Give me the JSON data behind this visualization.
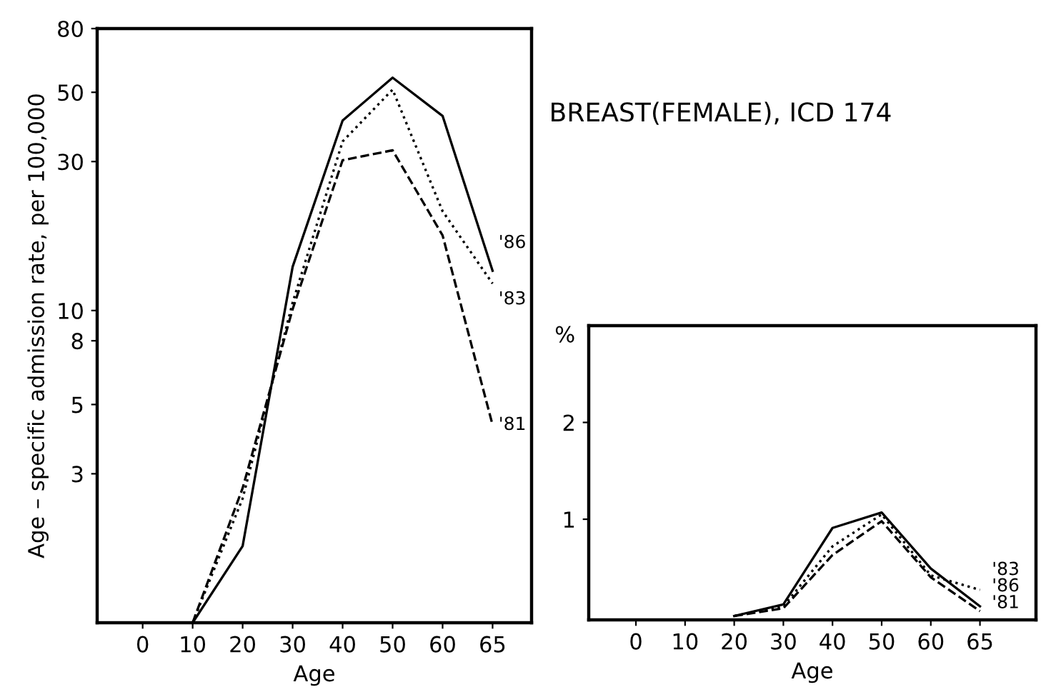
{
  "chart_data": [
    {
      "type": "line",
      "ylabel": "Age – specific admission rate, per 100,000",
      "xlabel": "Age",
      "log": "y",
      "categories": [
        "0",
        "10",
        "20",
        "30",
        "40",
        "50",
        "60",
        "65"
      ],
      "ylim": [
        1,
        80
      ],
      "yticks": [
        3,
        5,
        8,
        10,
        30,
        50,
        80
      ],
      "grid": false,
      "series": [
        {
          "name": "'86",
          "color": "#000000",
          "line_style": "solid",
          "values": [
            null,
            1.0,
            1.76,
            13.8,
            40.6,
            55.7,
            42,
            13.4
          ]
        },
        {
          "name": "'83",
          "color": "#000000",
          "line_style": "dotted",
          "values": [
            null,
            1.0,
            2.5,
            10.6,
            34.8,
            51,
            20.8,
            12.2
          ]
        },
        {
          "name": "'81",
          "color": "#000000",
          "line_style": "dashed",
          "values": [
            null,
            1.0,
            2.7,
            10.1,
            30.3,
            32.6,
            17.4,
            4.3
          ]
        }
      ]
    },
    {
      "type": "line",
      "title": "BREAST(FEMALE), ICD 174",
      "ylabel": "%",
      "xlabel": "Age",
      "categories": [
        "0",
        "10",
        "20",
        "30",
        "40",
        "50",
        "60",
        "65"
      ],
      "ylim": [
        -0.04,
        3
      ],
      "yticks": [
        1,
        2
      ],
      "grid": false,
      "series": [
        {
          "name": "'83",
          "color": "#000000",
          "line_style": "dotted",
          "values": [
            null,
            null,
            0,
            0.1,
            0.72,
            1.05,
            0.42,
            0.27
          ]
        },
        {
          "name": "'86",
          "color": "#000000",
          "line_style": "solid",
          "values": [
            null,
            null,
            0,
            0.12,
            0.91,
            1.07,
            0.49,
            0.1
          ]
        },
        {
          "name": "'81",
          "color": "#000000",
          "line_style": "dashed",
          "values": [
            null,
            null,
            0,
            0.08,
            0.63,
            0.98,
            0.4,
            0.05
          ]
        }
      ]
    }
  ]
}
